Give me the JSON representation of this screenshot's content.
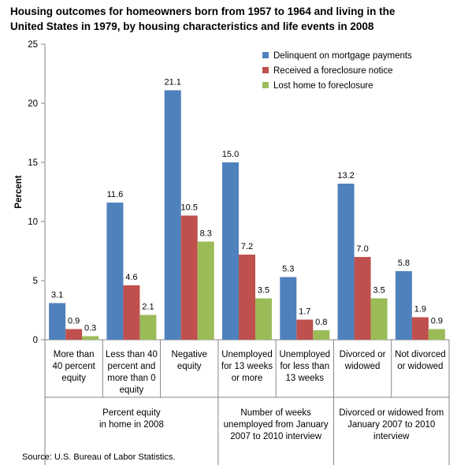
{
  "title_lines": [
    "Housing outcomes for homeowners born from 1957  to 1964  and living in the",
    "United States in 1979,  by housing characteristics and life events in 2008"
  ],
  "source": "Source:  U.S. Bureau of Labor Statistics.",
  "colors": {
    "delinquent": "#4F81BD",
    "notice": "#C0504D",
    "lost": "#9BBB59"
  },
  "chart_data": {
    "type": "bar",
    "ylabel": "Percent",
    "ylim": [
      0,
      25
    ],
    "yticks": [
      "0",
      "5",
      "10",
      "15",
      "20",
      "25"
    ],
    "grid": false,
    "legend_position": "top-right",
    "categories": [
      [
        "More than",
        "40 percent",
        "equity"
      ],
      [
        "Less than 40",
        "percent and",
        "more than 0",
        "equity"
      ],
      [
        "Negative",
        "equity"
      ],
      [
        "Unemployed",
        "for 13 weeks",
        "or more"
      ],
      [
        "Unemployed",
        "for less than",
        "13 weeks"
      ],
      [
        "Divorced or",
        "widowed"
      ],
      [
        "Not divorced",
        "or widowed"
      ]
    ],
    "groups": [
      {
        "label": [
          "Percent equity",
          "in home in 2008"
        ]
      },
      {
        "label": [
          "Number of weeks",
          "unemployed from January",
          "2007 to 2010 interview"
        ]
      },
      {
        "label": [
          "Divorced or widowed from",
          "January 2007 to 2010",
          "interview"
        ]
      }
    ],
    "series": [
      {
        "name": "Delinquent on mortgage  payments",
        "values": [
          3.1,
          11.6,
          21.1,
          15.0,
          5.3,
          13.2,
          5.8
        ],
        "labels": [
          "3.1",
          "11.6",
          "21.1",
          "15.0",
          "5.3",
          "13.2",
          "5.8"
        ]
      },
      {
        "name": "Received a foreclosure notice",
        "values": [
          0.9,
          4.6,
          10.5,
          7.2,
          1.7,
          7.0,
          1.9
        ],
        "labels": [
          "0.9",
          "4.6",
          "10.5",
          "7.2",
          "1.7",
          "7.0",
          "1.9"
        ]
      },
      {
        "name": "Lost home  to foreclosure",
        "values": [
          0.3,
          2.1,
          8.3,
          3.5,
          0.8,
          3.5,
          0.9
        ],
        "labels": [
          "0.3",
          "2.1",
          "8.3",
          "3.5",
          "0.8",
          "3.5",
          "0.9"
        ]
      }
    ]
  }
}
